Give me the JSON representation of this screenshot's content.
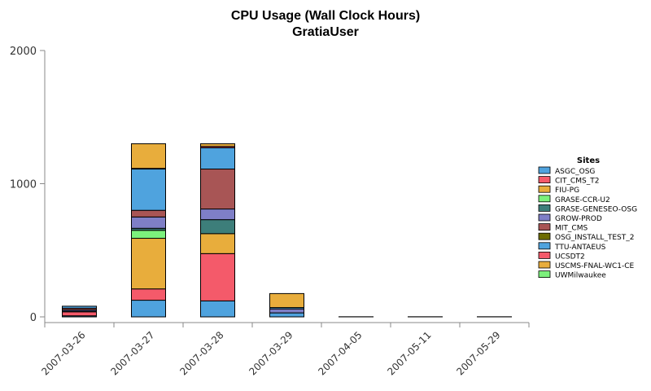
{
  "chart_data": {
    "type": "bar",
    "stacked": true,
    "title": "CPU Usage (Wall Clock Hours)",
    "subtitle": "GratiaUser",
    "xlabel": "",
    "ylabel": "",
    "ylim": [
      0,
      2000
    ],
    "yticks": [
      0,
      1000,
      2000
    ],
    "grid": false,
    "legend_title": "Sites",
    "legend_position": "right",
    "categories": [
      "2007-03-26",
      "2007-03-27",
      "2007-03-28",
      "2007-03-29",
      "2007-04-05",
      "2007-05-11",
      "2007-05-29"
    ],
    "series": [
      {
        "name": "ASGC_OSG",
        "color": "#4fa3de",
        "values": [
          8,
          125,
          120,
          30,
          1,
          1,
          1
        ]
      },
      {
        "name": "CIT_CMS_T2",
        "color": "#f45a6a",
        "values": [
          30,
          85,
          355,
          0,
          0,
          0,
          0
        ]
      },
      {
        "name": "FIU-PG",
        "color": "#e8ad3c",
        "values": [
          0,
          380,
          150,
          0,
          0,
          0,
          0
        ]
      },
      {
        "name": "GRASE-CCR-U2",
        "color": "#7cf07c",
        "values": [
          0,
          60,
          0,
          0,
          0,
          0,
          0
        ]
      },
      {
        "name": "GRASE-GENESEO-OSG",
        "color": "#3d7e7a",
        "values": [
          5,
          15,
          105,
          0,
          0,
          0,
          0
        ]
      },
      {
        "name": "GROW-PROD",
        "color": "#7f7fc7",
        "values": [
          10,
          85,
          80,
          30,
          0,
          0,
          0
        ]
      },
      {
        "name": "MIT_CMS",
        "color": "#a85555",
        "values": [
          12,
          50,
          300,
          0,
          0,
          0,
          0
        ]
      },
      {
        "name": "OSG_INSTALL_TEST_2",
        "color": "#6c6c00",
        "values": [
          0,
          0,
          0,
          0,
          0,
          0,
          0
        ]
      },
      {
        "name": "TTU-ANTAEUS",
        "color": "#4fa3de",
        "values": [
          15,
          310,
          160,
          10,
          0,
          0,
          0
        ]
      },
      {
        "name": "UCSDT2",
        "color": "#f45a6a",
        "values": [
          0,
          5,
          10,
          0,
          0,
          0,
          0
        ]
      },
      {
        "name": "USCMS-FNAL-WC1-CE",
        "color": "#e8ad3c",
        "values": [
          0,
          185,
          20,
          105,
          0,
          0,
          0
        ]
      },
      {
        "name": "UWMilwaukee",
        "color": "#7cf07c",
        "values": [
          0,
          0,
          0,
          0,
          0,
          0,
          0
        ]
      }
    ]
  }
}
